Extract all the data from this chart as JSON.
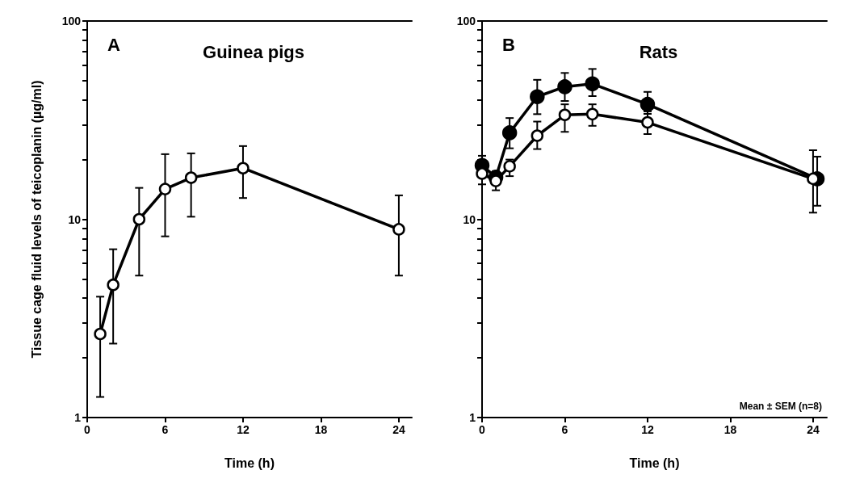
{
  "chart_data": [
    {
      "type": "line",
      "title": "Guinea pigs",
      "xlabel": "Time (h)",
      "ylabel": "Tissue cage fluid levels of teicoplanin (µg/ml)",
      "annotations": [
        "A"
      ],
      "log": "y",
      "marker": "circle",
      "line_style": "solid",
      "grid": false,
      "xlim": [
        0,
        25
      ],
      "xticks": [
        0,
        6,
        12,
        18,
        24
      ],
      "ylim": [
        1,
        100
      ],
      "yticks": [
        1,
        {
          "value": 2,
          "label": null
        },
        {
          "value": 3,
          "label": null
        },
        {
          "value": 4,
          "label": null
        },
        {
          "value": 5,
          "label": null
        },
        {
          "value": 6,
          "label": null
        },
        {
          "value": 7,
          "label": null
        },
        {
          "value": 8,
          "label": null
        },
        {
          "value": 9,
          "label": null
        },
        10,
        {
          "value": 20,
          "label": null
        },
        {
          "value": 30,
          "label": null
        },
        {
          "value": 40,
          "label": null
        },
        {
          "value": 50,
          "label": null
        },
        {
          "value": 60,
          "label": null
        },
        {
          "value": 70,
          "label": null
        },
        {
          "value": 80,
          "label": null
        },
        {
          "value": 90,
          "label": null
        },
        100
      ],
      "series": [
        {
          "color": "#ffffff",
          "x": [
            1,
            2,
            4,
            6,
            8,
            12,
            24
          ],
          "values": [
            2.64,
            4.67,
            10,
            14.2,
            16.2,
            18.1,
            8.9
          ],
          "errors": [
            [
              1.27,
              4.07
            ],
            [
              2.36,
              7.06
            ],
            [
              5.2,
              14.4
            ],
            [
              8.2,
              21.3
            ],
            [
              10.3,
              21.5
            ],
            [
              12.8,
              23.4
            ],
            [
              5.2,
              13.2
            ]
          ]
        }
      ]
    },
    {
      "type": "line",
      "title": "Rats",
      "xlabel": "Time (h)",
      "annotations": [
        "B",
        "Mean ± SEM (n=8)"
      ],
      "log": "y",
      "marker": "circle",
      "line_style": "solid",
      "grid": false,
      "xlim": [
        0,
        25
      ],
      "xticks": [
        0,
        6,
        12,
        18,
        24
      ],
      "ylim": [
        1,
        100
      ],
      "yticks": [
        1,
        {
          "value": 2,
          "label": null
        },
        {
          "value": 3,
          "label": null
        },
        {
          "value": 4,
          "label": null
        },
        {
          "value": 5,
          "label": null
        },
        {
          "value": 6,
          "label": null
        },
        {
          "value": 7,
          "label": null
        },
        {
          "value": 8,
          "label": null
        },
        {
          "value": 9,
          "label": null
        },
        10,
        {
          "value": 20,
          "label": null
        },
        {
          "value": 30,
          "label": null
        },
        {
          "value": 40,
          "label": null
        },
        {
          "value": 50,
          "label": null
        },
        {
          "value": 60,
          "label": null
        },
        {
          "value": 70,
          "label": null
        },
        {
          "value": 80,
          "label": null
        },
        {
          "value": 90,
          "label": null
        },
        100
      ],
      "series": [
        {
          "color": "#000000",
          "x": [
            0,
            1,
            2,
            4,
            6,
            8,
            12,
            24.3
          ],
          "values": [
            18.7,
            16.3,
            27.3,
            41.5,
            46.6,
            48.2,
            38,
            16
          ],
          "errors": [
            [
              18.7,
              20.9
            ],
            [
              15,
              17.5
            ],
            [
              22.8,
              32.4
            ],
            [
              33.9,
              50.5
            ],
            [
              39.5,
              54.7
            ],
            [
              41.8,
              57.3
            ],
            [
              34,
              43.9
            ],
            [
              11.7,
              20.7
            ]
          ]
        },
        {
          "color": "#ffffff",
          "x": [
            0,
            1,
            2,
            4,
            6,
            8,
            12,
            24
          ],
          "values": [
            17,
            15.6,
            18.5,
            26.4,
            33.6,
            33.9,
            30.8,
            16
          ],
          "errors": [
            [
              15,
              17
            ],
            [
              14,
              17.2
            ],
            [
              16.5,
              20
            ],
            [
              22.6,
              31.1
            ],
            [
              27.6,
              38
            ],
            [
              29.6,
              38
            ],
            [
              26.9,
              35
            ],
            [
              10.8,
              22.3
            ]
          ]
        }
      ]
    }
  ]
}
